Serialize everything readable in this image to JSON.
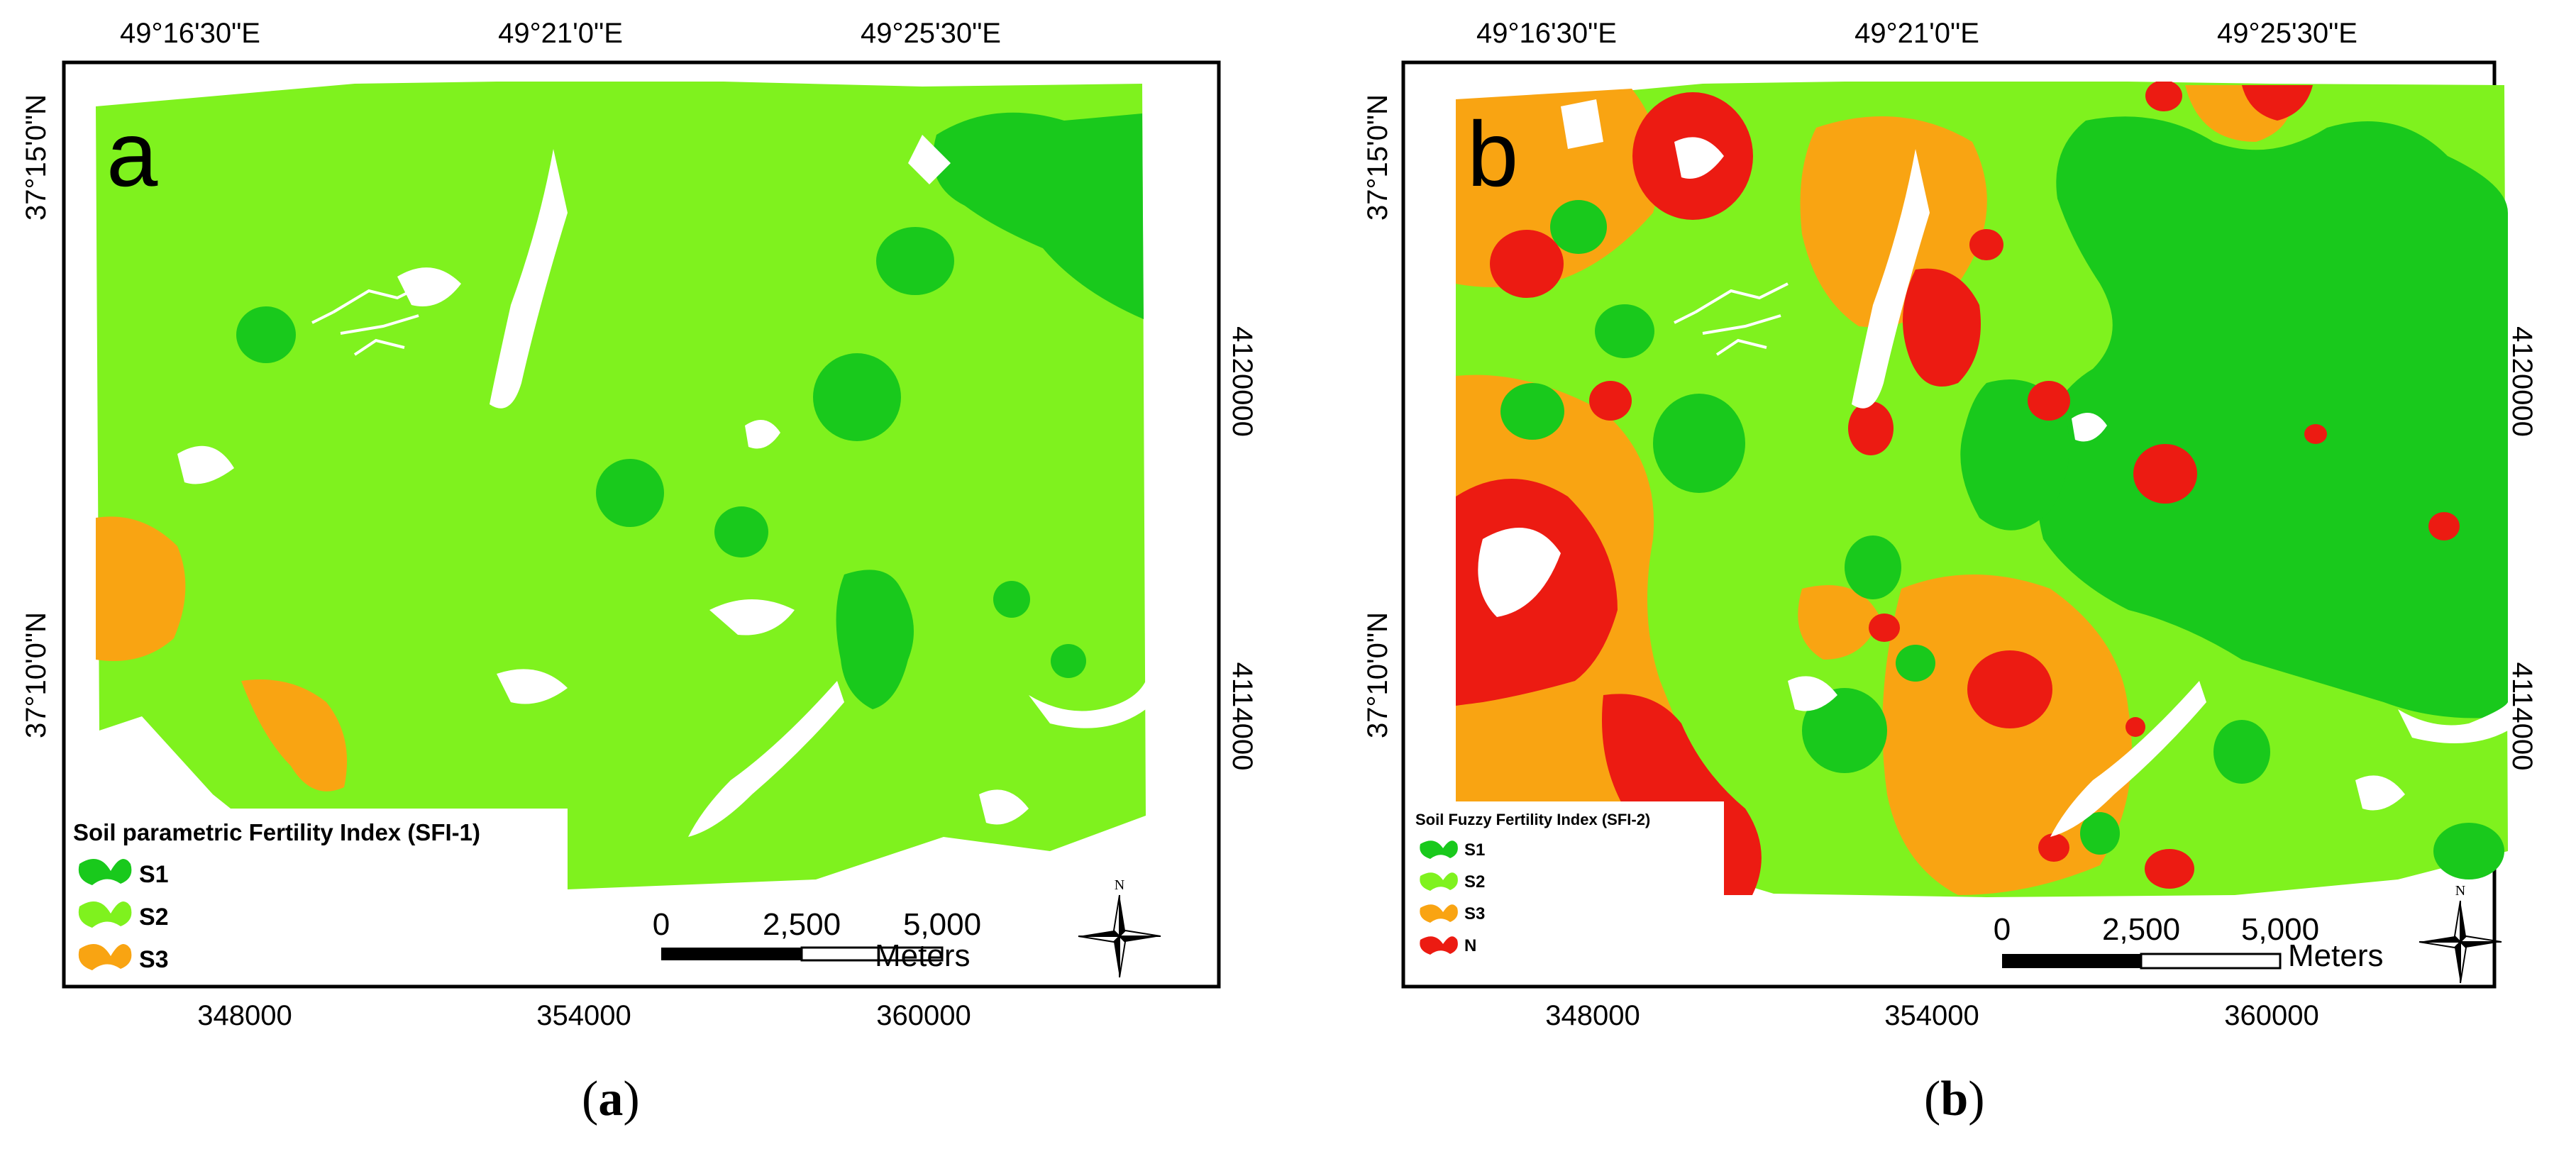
{
  "colors": {
    "S1": "#19c91c",
    "S2": "#7ff21e",
    "S3": "#f9a412",
    "N": "#ec1b12",
    "frame": "#000000",
    "background": "#ffffff"
  },
  "panel_a": {
    "letter": "a",
    "top_labels": [
      "49°16'30\"E",
      "49°21'0\"E",
      "49°25'30\"E"
    ],
    "left_labels": [
      "37°15'0\"N",
      "37°10'0\"N"
    ],
    "right_labels": [
      "4120000",
      "4114000"
    ],
    "bottom_labels": [
      "348000",
      "354000",
      "360000"
    ],
    "legend_title": "Soil parametric Fertility Index (SFI-1)",
    "legend_items": [
      {
        "label": "S1",
        "color_key": "S1"
      },
      {
        "label": "S2",
        "color_key": "S2"
      },
      {
        "label": "S3",
        "color_key": "S3"
      }
    ],
    "scale": {
      "ticks": [
        "0",
        "2,500",
        "5,000"
      ],
      "unit": "Meters"
    },
    "north": "N"
  },
  "panel_b": {
    "letter": "b",
    "top_labels": [
      "49°16'30\"E",
      "49°21'0\"E",
      "49°25'30\"E"
    ],
    "left_labels": [
      "37°15'0\"N",
      "37°10'0\"N"
    ],
    "right_labels": [
      "4120000",
      "4114000"
    ],
    "bottom_labels": [
      "348000",
      "354000",
      "360000"
    ],
    "legend_title": "Soil Fuzzy Fertility Index (SFI-2)",
    "legend_items": [
      {
        "label": "S1",
        "color_key": "S1"
      },
      {
        "label": "S2",
        "color_key": "S2"
      },
      {
        "label": "S3",
        "color_key": "S3"
      },
      {
        "label": "N",
        "color_key": "N"
      }
    ],
    "scale": {
      "ticks": [
        "0",
        "2,500",
        "5,000"
      ],
      "unit": "Meters"
    },
    "north": "N"
  },
  "captions": {
    "a": "a",
    "b": "b"
  }
}
